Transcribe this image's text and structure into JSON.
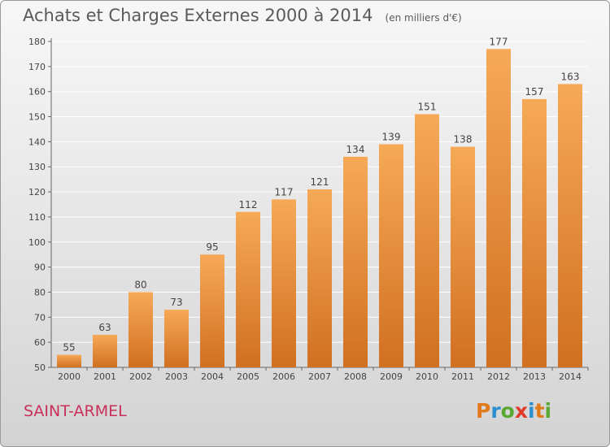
{
  "header": {
    "title": "Achats et Charges Externes 2000 à 2014",
    "subtitle": "(en milliers d'€)"
  },
  "footer": {
    "commune": "SAINT-ARMEL",
    "logo_text": "Proxiti",
    "logo_colors": [
      "#e07a1a",
      "#2a8fd0",
      "#5aa832",
      "#e03a2a",
      "#2a8fd0",
      "#e07a1a",
      "#5aa832"
    ]
  },
  "colors": {
    "bar_top": "#f6a957",
    "bar_bottom": "#d07020",
    "axis": "#666666",
    "grid": "#ffffff"
  },
  "chart_data": {
    "type": "bar",
    "title": "Achats et Charges Externes 2000 à 2014",
    "subtitle": "(en milliers d'€)",
    "categories": [
      "2000",
      "2001",
      "2002",
      "2003",
      "2004",
      "2005",
      "2006",
      "2007",
      "2008",
      "2009",
      "2010",
      "2011",
      "2012",
      "2013",
      "2014"
    ],
    "values": [
      55,
      63,
      80,
      73,
      95,
      112,
      117,
      121,
      134,
      139,
      151,
      138,
      177,
      157,
      163
    ],
    "ylim": [
      50,
      180
    ],
    "yticks": [
      50,
      60,
      70,
      80,
      90,
      100,
      110,
      120,
      130,
      140,
      150,
      160,
      170,
      180
    ],
    "grid": true,
    "legend": "none"
  }
}
